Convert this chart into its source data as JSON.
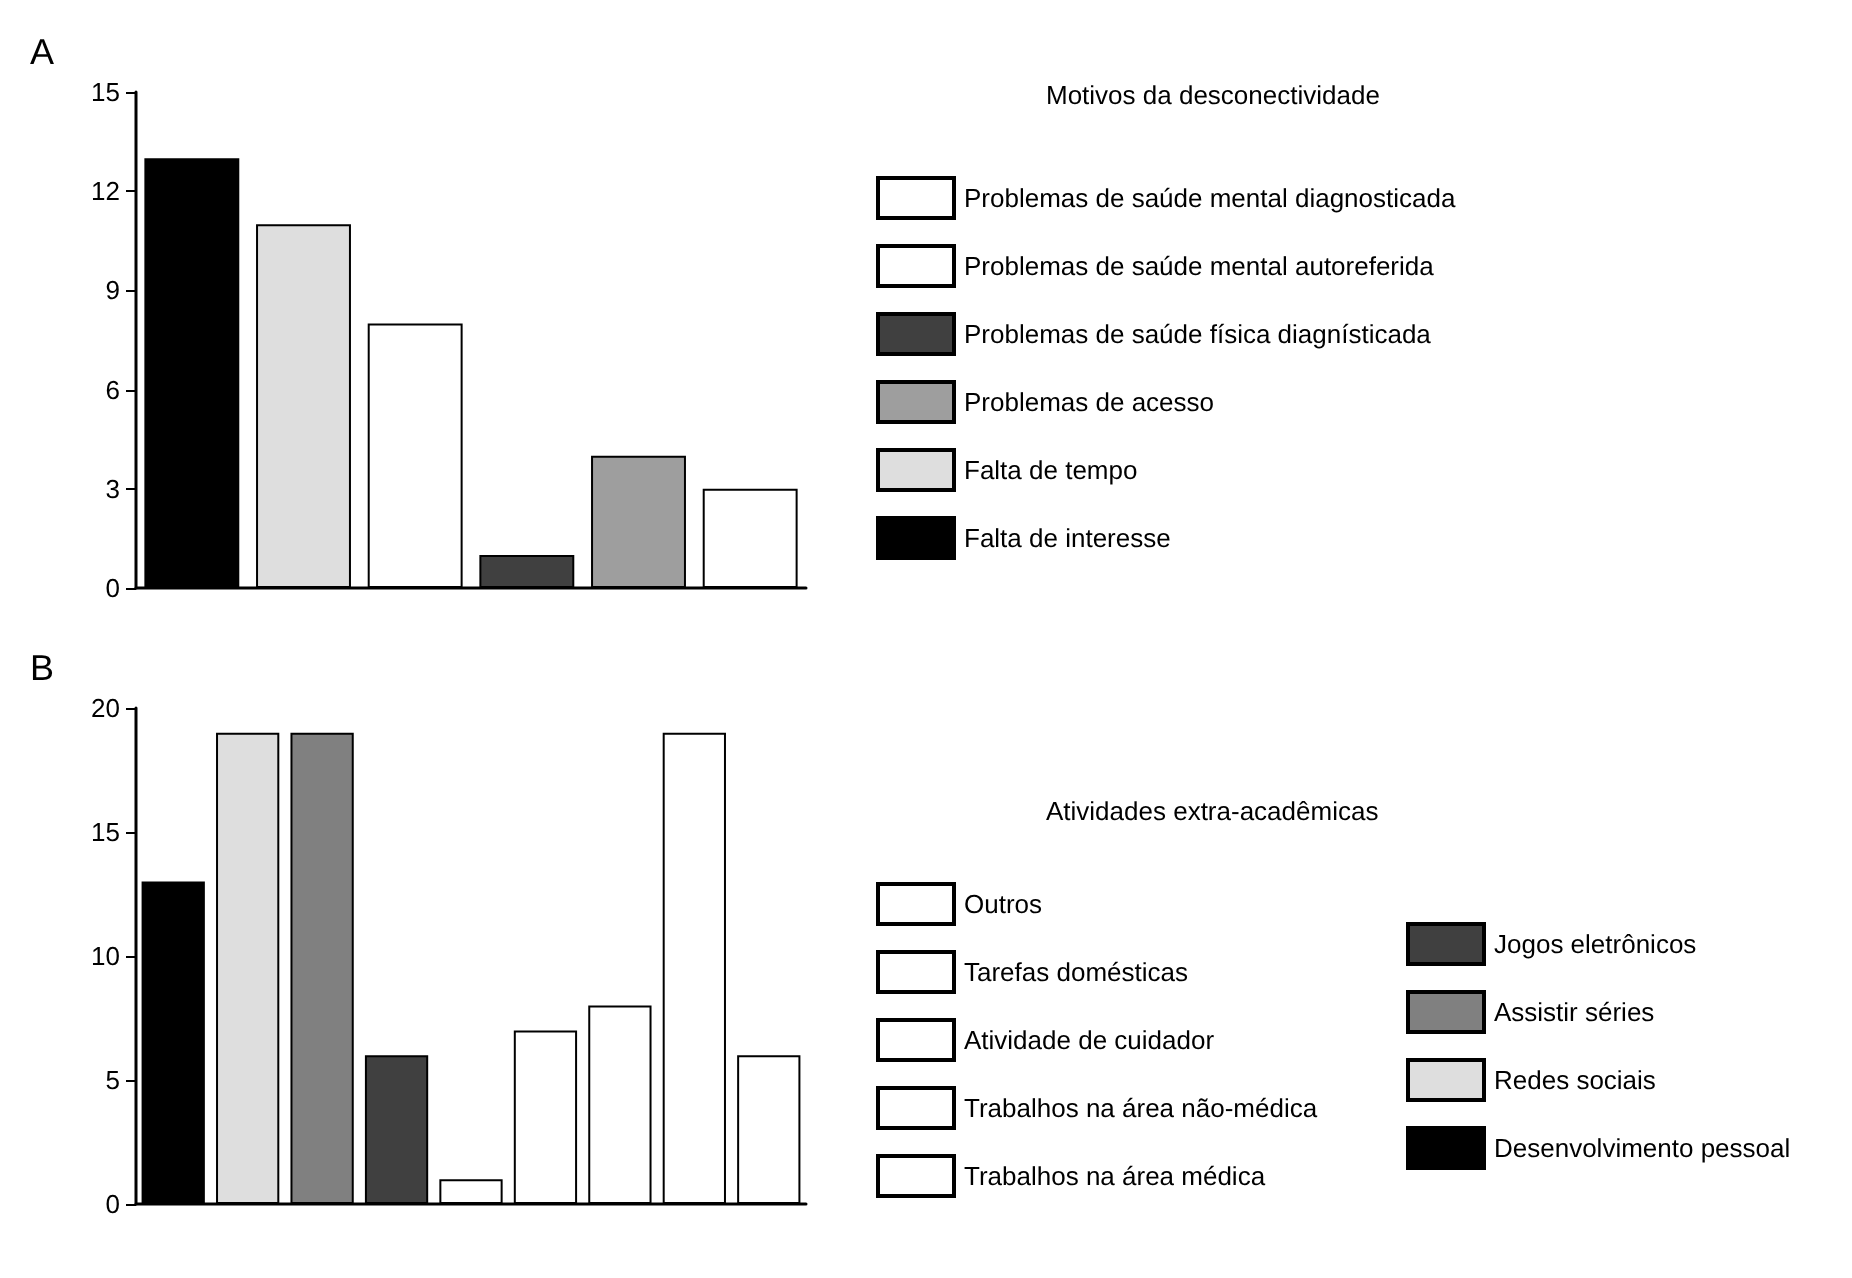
{
  "chart_data": [
    {
      "type": "bar",
      "title": "A",
      "legend_title": "Motivos da desconectividade",
      "categories": [
        null,
        null,
        null,
        null,
        null,
        null
      ],
      "ylim": [
        0,
        15
      ],
      "yticks": [
        0,
        3,
        6,
        9,
        12,
        15
      ],
      "grid": false,
      "legend": "right",
      "series": [
        {
          "name": "Problemas de saúde mental diagnosticada",
          "color": "#ffffff",
          "values": [
            null,
            null,
            null,
            null,
            null,
            3
          ]
        },
        {
          "name": "Problemas de saúde mental autoreferida",
          "color": "#ffffff",
          "values": [
            null,
            null,
            8,
            null,
            null,
            null
          ]
        },
        {
          "name": "Problemas de saúde física diagnísticada",
          "color": "#404040",
          "values": [
            null,
            null,
            null,
            1,
            null,
            null
          ]
        },
        {
          "name": "Problemas de acesso",
          "color": "#9e9e9e",
          "values": [
            null,
            null,
            null,
            null,
            4,
            null
          ]
        },
        {
          "name": "Falta de tempo",
          "color": "#dedede",
          "values": [
            null,
            11,
            null,
            null,
            null,
            null
          ]
        },
        {
          "name": "Falta de interesse",
          "color": "#000000",
          "values": [
            13,
            null,
            null,
            null,
            null,
            null
          ]
        }
      ]
    },
    {
      "type": "bar",
      "title": "B",
      "legend_title": "Atividades extra-acadêmicas",
      "categories": [
        null,
        null,
        null,
        null,
        null,
        null,
        null,
        null,
        null
      ],
      "ylim": [
        0,
        20
      ],
      "yticks": [
        0,
        5,
        10,
        15,
        20
      ],
      "grid": false,
      "legend": "right",
      "series": [
        {
          "name": "Outros",
          "color": "#ffffff",
          "values": [
            null,
            null,
            null,
            null,
            null,
            null,
            null,
            null,
            6
          ]
        },
        {
          "name": "Tarefas domésticas",
          "color": "#ffffff",
          "values": [
            null,
            null,
            null,
            null,
            null,
            null,
            null,
            19,
            null
          ]
        },
        {
          "name": "Atividade de cuidador",
          "color": "#ffffff",
          "values": [
            null,
            null,
            null,
            null,
            null,
            null,
            8,
            null,
            null
          ]
        },
        {
          "name": "Trabalhos na área não-médica",
          "color": "#ffffff",
          "values": [
            null,
            null,
            null,
            null,
            null,
            7,
            null,
            null,
            null
          ]
        },
        {
          "name": "Trabalhos na área médica",
          "color": "#ffffff",
          "values": [
            null,
            null,
            null,
            null,
            1,
            null,
            null,
            null,
            null
          ]
        },
        {
          "name": "Jogos eletrônicos",
          "color": "#404040",
          "values": [
            null,
            null,
            null,
            6,
            null,
            null,
            null,
            null,
            null
          ]
        },
        {
          "name": "Assistir séries",
          "color": "#808080",
          "values": [
            null,
            null,
            19,
            null,
            null,
            null,
            null,
            null,
            null
          ]
        },
        {
          "name": "Redes sociais",
          "color": "#dedede",
          "values": [
            null,
            19,
            null,
            null,
            null,
            null,
            null,
            null,
            null
          ]
        },
        {
          "name": "Desenvolvimento pessoal",
          "color": "#000000",
          "values": [
            13,
            null,
            null,
            null,
            null,
            null,
            null,
            null,
            null
          ]
        }
      ]
    }
  ]
}
